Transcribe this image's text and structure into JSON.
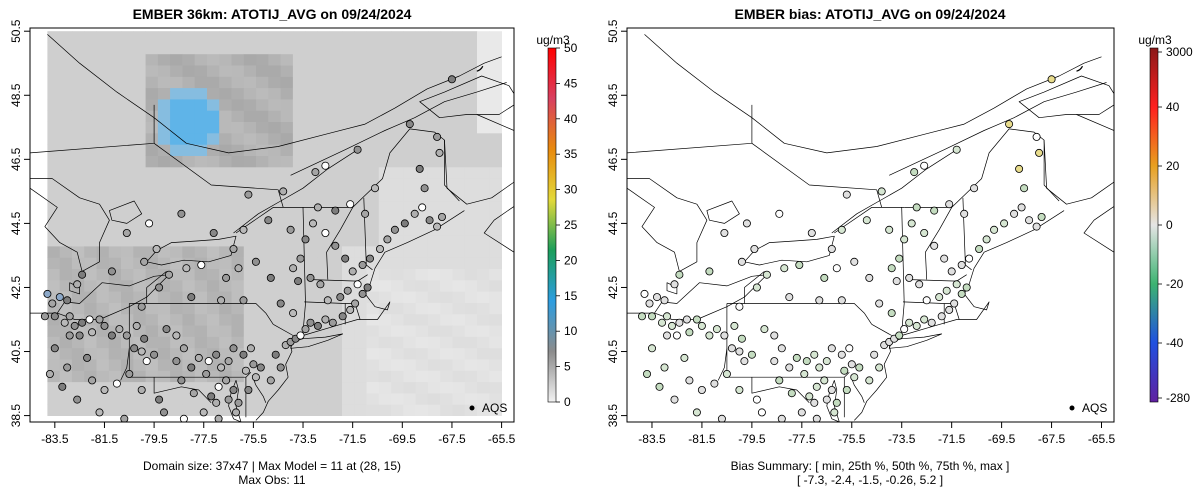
{
  "chart_data": [
    {
      "type": "map",
      "title": "EMBER 36km: ATOTIJ_AVG on 09/24/2024",
      "x_ticks": [
        "-83.5",
        "-81.5",
        "-79.5",
        "-77.5",
        "-75.5",
        "-73.5",
        "-71.5",
        "-69.5",
        "-67.5",
        "-65.5"
      ],
      "y_ticks": [
        "38.5",
        "40.5",
        "42.5",
        "44.5",
        "46.5",
        "48.5",
        "50.5"
      ],
      "xlim": [
        -84.5,
        -65
      ],
      "ylim": [
        38.3,
        50.6
      ],
      "colorbar": {
        "unit": "ug/m3",
        "labels": [
          "0",
          "5",
          "10",
          "15",
          "20",
          "25",
          "30",
          "35",
          "40",
          "45",
          "50"
        ],
        "range": [
          0,
          50
        ],
        "stops": [
          "#f2f2f2",
          "#8c8c8c",
          "#2c9de0",
          "#1b9e5a",
          "#e3d93a",
          "#e88a0d",
          "#d84060",
          "#ff0000"
        ]
      },
      "legend": "AQS",
      "caption_line1": "Domain size: 37x47 | Max Model = 11 at (28, 15)",
      "caption_line2": "Max Obs: 11"
    },
    {
      "type": "map",
      "title": "EMBER bias: ATOTIJ_AVG on 09/24/2024",
      "x_ticks": [
        "-83.5",
        "-81.5",
        "-79.5",
        "-77.5",
        "-75.5",
        "-73.5",
        "-71.5",
        "-69.5",
        "-67.5",
        "-65.5"
      ],
      "y_ticks": [
        "38.5",
        "40.5",
        "42.5",
        "44.5",
        "46.5",
        "48.5",
        "50.5"
      ],
      "xlim": [
        -84.5,
        -65
      ],
      "ylim": [
        38.3,
        50.6
      ],
      "colorbar": {
        "unit": "ug/m3",
        "labels": [
          "3000",
          "40",
          "20",
          "0",
          "-20",
          "-40",
          "-280"
        ],
        "stops": [
          "#8b1a1a",
          "#ff2020",
          "#e8a020",
          "#e5e5e5",
          "#3cb371",
          "#2050e0",
          "#6020a0"
        ]
      },
      "legend": "AQS",
      "caption_line1": "Bias Summary: [ min, 25th %, 50th %, 75th %, max ]",
      "caption_line2": "[ -7.3,   -2.4,   -1.5,   -0.26,   5.2 ]",
      "bias_summary": {
        "min": -7.3,
        "p25": -2.4,
        "p50": -1.5,
        "p75": -0.26,
        "max": 5.2
      }
    }
  ],
  "stations": [
    [
      -83.8,
      42.3
    ],
    [
      -83.6,
      42.0
    ],
    [
      -83.3,
      42.2
    ],
    [
      -83.0,
      42.1
    ],
    [
      -82.6,
      42.6
    ],
    [
      -83.9,
      41.6
    ],
    [
      -83.5,
      41.6
    ],
    [
      -83.1,
      41.4
    ],
    [
      -82.9,
      41.6
    ],
    [
      -82.7,
      41.3
    ],
    [
      -82.4,
      41.4
    ],
    [
      -82.1,
      41.5
    ],
    [
      -82.9,
      41.0
    ],
    [
      -82.5,
      41.0
    ],
    [
      -82.0,
      41.1
    ],
    [
      -81.7,
      41.5
    ],
    [
      -81.5,
      41.3
    ],
    [
      -81.2,
      41.0
    ],
    [
      -80.9,
      41.2
    ],
    [
      -80.6,
      41.0
    ],
    [
      -80.3,
      40.6
    ],
    [
      -80.0,
      40.5
    ],
    [
      -79.8,
      40.2
    ],
    [
      -79.5,
      40.4
    ],
    [
      -79.9,
      40.9
    ],
    [
      -80.2,
      41.3
    ],
    [
      -80.0,
      41.9
    ],
    [
      -79.0,
      41.2
    ],
    [
      -78.6,
      41.0
    ],
    [
      -78.3,
      40.6
    ],
    [
      -78.6,
      40.2
    ],
    [
      -78.0,
      40.0
    ],
    [
      -77.7,
      40.3
    ],
    [
      -77.3,
      40.2
    ],
    [
      -77.0,
      40.4
    ],
    [
      -76.8,
      40.0
    ],
    [
      -76.5,
      40.2
    ],
    [
      -76.3,
      40.6
    ],
    [
      -75.9,
      40.4
    ],
    [
      -75.6,
      40.6
    ],
    [
      -75.5,
      40.1
    ],
    [
      -75.2,
      40.0
    ],
    [
      -75.8,
      39.9
    ],
    [
      -76.6,
      39.6
    ],
    [
      -76.9,
      39.4
    ],
    [
      -77.2,
      39.1
    ],
    [
      -77.0,
      38.9
    ],
    [
      -76.5,
      39.0
    ],
    [
      -76.3,
      39.3
    ],
    [
      -77.5,
      38.6
    ],
    [
      -77.9,
      39.2
    ],
    [
      -78.4,
      39.6
    ],
    [
      -79.3,
      39.0
    ],
    [
      -80.0,
      39.3
    ],
    [
      -80.5,
      39.8
    ],
    [
      -81.0,
      39.5
    ],
    [
      -81.5,
      39.3
    ],
    [
      -82.0,
      39.6
    ],
    [
      -82.6,
      39.0
    ],
    [
      -83.2,
      39.4
    ],
    [
      -83.7,
      39.8
    ],
    [
      -83.0,
      40.0
    ],
    [
      -83.5,
      40.6
    ],
    [
      -81.7,
      38.6
    ],
    [
      -80.7,
      38.4
    ],
    [
      -79.1,
      38.6
    ],
    [
      -78.3,
      38.4
    ],
    [
      -76.9,
      38.4
    ],
    [
      -76.1,
      38.9
    ],
    [
      -75.7,
      39.3
    ],
    [
      -75.4,
      39.7
    ],
    [
      -74.8,
      39.6
    ],
    [
      -74.4,
      40.0
    ],
    [
      -74.6,
      40.4
    ],
    [
      -74.2,
      40.7
    ],
    [
      -74.0,
      40.8
    ],
    [
      -73.8,
      40.9
    ],
    [
      -73.6,
      41.0
    ],
    [
      -73.4,
      41.2
    ],
    [
      -73.2,
      41.4
    ],
    [
      -72.9,
      41.3
    ],
    [
      -72.6,
      41.5
    ],
    [
      -72.3,
      41.4
    ],
    [
      -71.9,
      41.6
    ],
    [
      -71.6,
      41.8
    ],
    [
      -71.4,
      42.0
    ],
    [
      -71.1,
      42.3
    ],
    [
      -70.9,
      42.5
    ],
    [
      -71.3,
      42.6
    ],
    [
      -71.7,
      42.4
    ],
    [
      -72.0,
      42.2
    ],
    [
      -72.5,
      42.1
    ],
    [
      -72.8,
      42.6
    ],
    [
      -73.2,
      42.8
    ],
    [
      -73.7,
      42.7
    ],
    [
      -73.9,
      43.1
    ],
    [
      -73.6,
      43.4
    ],
    [
      -73.4,
      44.0
    ],
    [
      -73.1,
      44.5
    ],
    [
      -72.6,
      44.2
    ],
    [
      -72.2,
      43.8
    ],
    [
      -71.8,
      43.4
    ],
    [
      -71.5,
      43.0
    ],
    [
      -71.1,
      43.2
    ],
    [
      -70.8,
      43.4
    ],
    [
      -70.4,
      43.7
    ],
    [
      -70.1,
      44.0
    ],
    [
      -69.8,
      44.3
    ],
    [
      -69.4,
      44.5
    ],
    [
      -69.0,
      44.8
    ],
    [
      -68.7,
      45.0
    ],
    [
      -68.4,
      44.6
    ],
    [
      -68.1,
      44.4
    ],
    [
      -67.9,
      44.7
    ],
    [
      -68.6,
      45.6
    ],
    [
      -68.8,
      46.2
    ],
    [
      -68.0,
      46.7
    ],
    [
      -68.1,
      47.2
    ],
    [
      -69.2,
      47.6
    ],
    [
      -70.6,
      45.6
    ],
    [
      -71.0,
      44.8
    ],
    [
      -71.6,
      45.1
    ],
    [
      -72.2,
      44.9
    ],
    [
      -72.9,
      45.0
    ],
    [
      -74.0,
      44.3
    ],
    [
      -74.9,
      44.6
    ],
    [
      -75.9,
      44.3
    ],
    [
      -76.3,
      43.7
    ],
    [
      -75.4,
      43.3
    ],
    [
      -74.8,
      42.8
    ],
    [
      -76.1,
      43.1
    ],
    [
      -76.6,
      42.8
    ],
    [
      -77.6,
      43.2
    ],
    [
      -78.2,
      43.1
    ],
    [
      -78.9,
      42.9
    ],
    [
      -79.3,
      42.5
    ],
    [
      -78.0,
      42.2
    ],
    [
      -76.8,
      42.1
    ],
    [
      -75.9,
      42.1
    ],
    [
      -74.4,
      42.0
    ],
    [
      -73.9,
      41.7
    ],
    [
      -73.0,
      46.1
    ],
    [
      -71.3,
      46.8
    ],
    [
      -72.6,
      46.3
    ],
    [
      -74.3,
      45.5
    ],
    [
      -75.7,
      45.4
    ],
    [
      -77.1,
      44.2
    ],
    [
      -79.4,
      43.7
    ],
    [
      -79.9,
      43.3
    ],
    [
      -81.2,
      43.0
    ],
    [
      -82.4,
      42.9
    ],
    [
      -76.2,
      38.6
    ],
    [
      -77.4,
      39.8
    ],
    [
      -82.2,
      40.3
    ],
    [
      -79.7,
      44.5
    ],
    [
      -80.6,
      44.2
    ],
    [
      -78.4,
      44.8
    ],
    [
      -67.5,
      49.0
    ]
  ]
}
